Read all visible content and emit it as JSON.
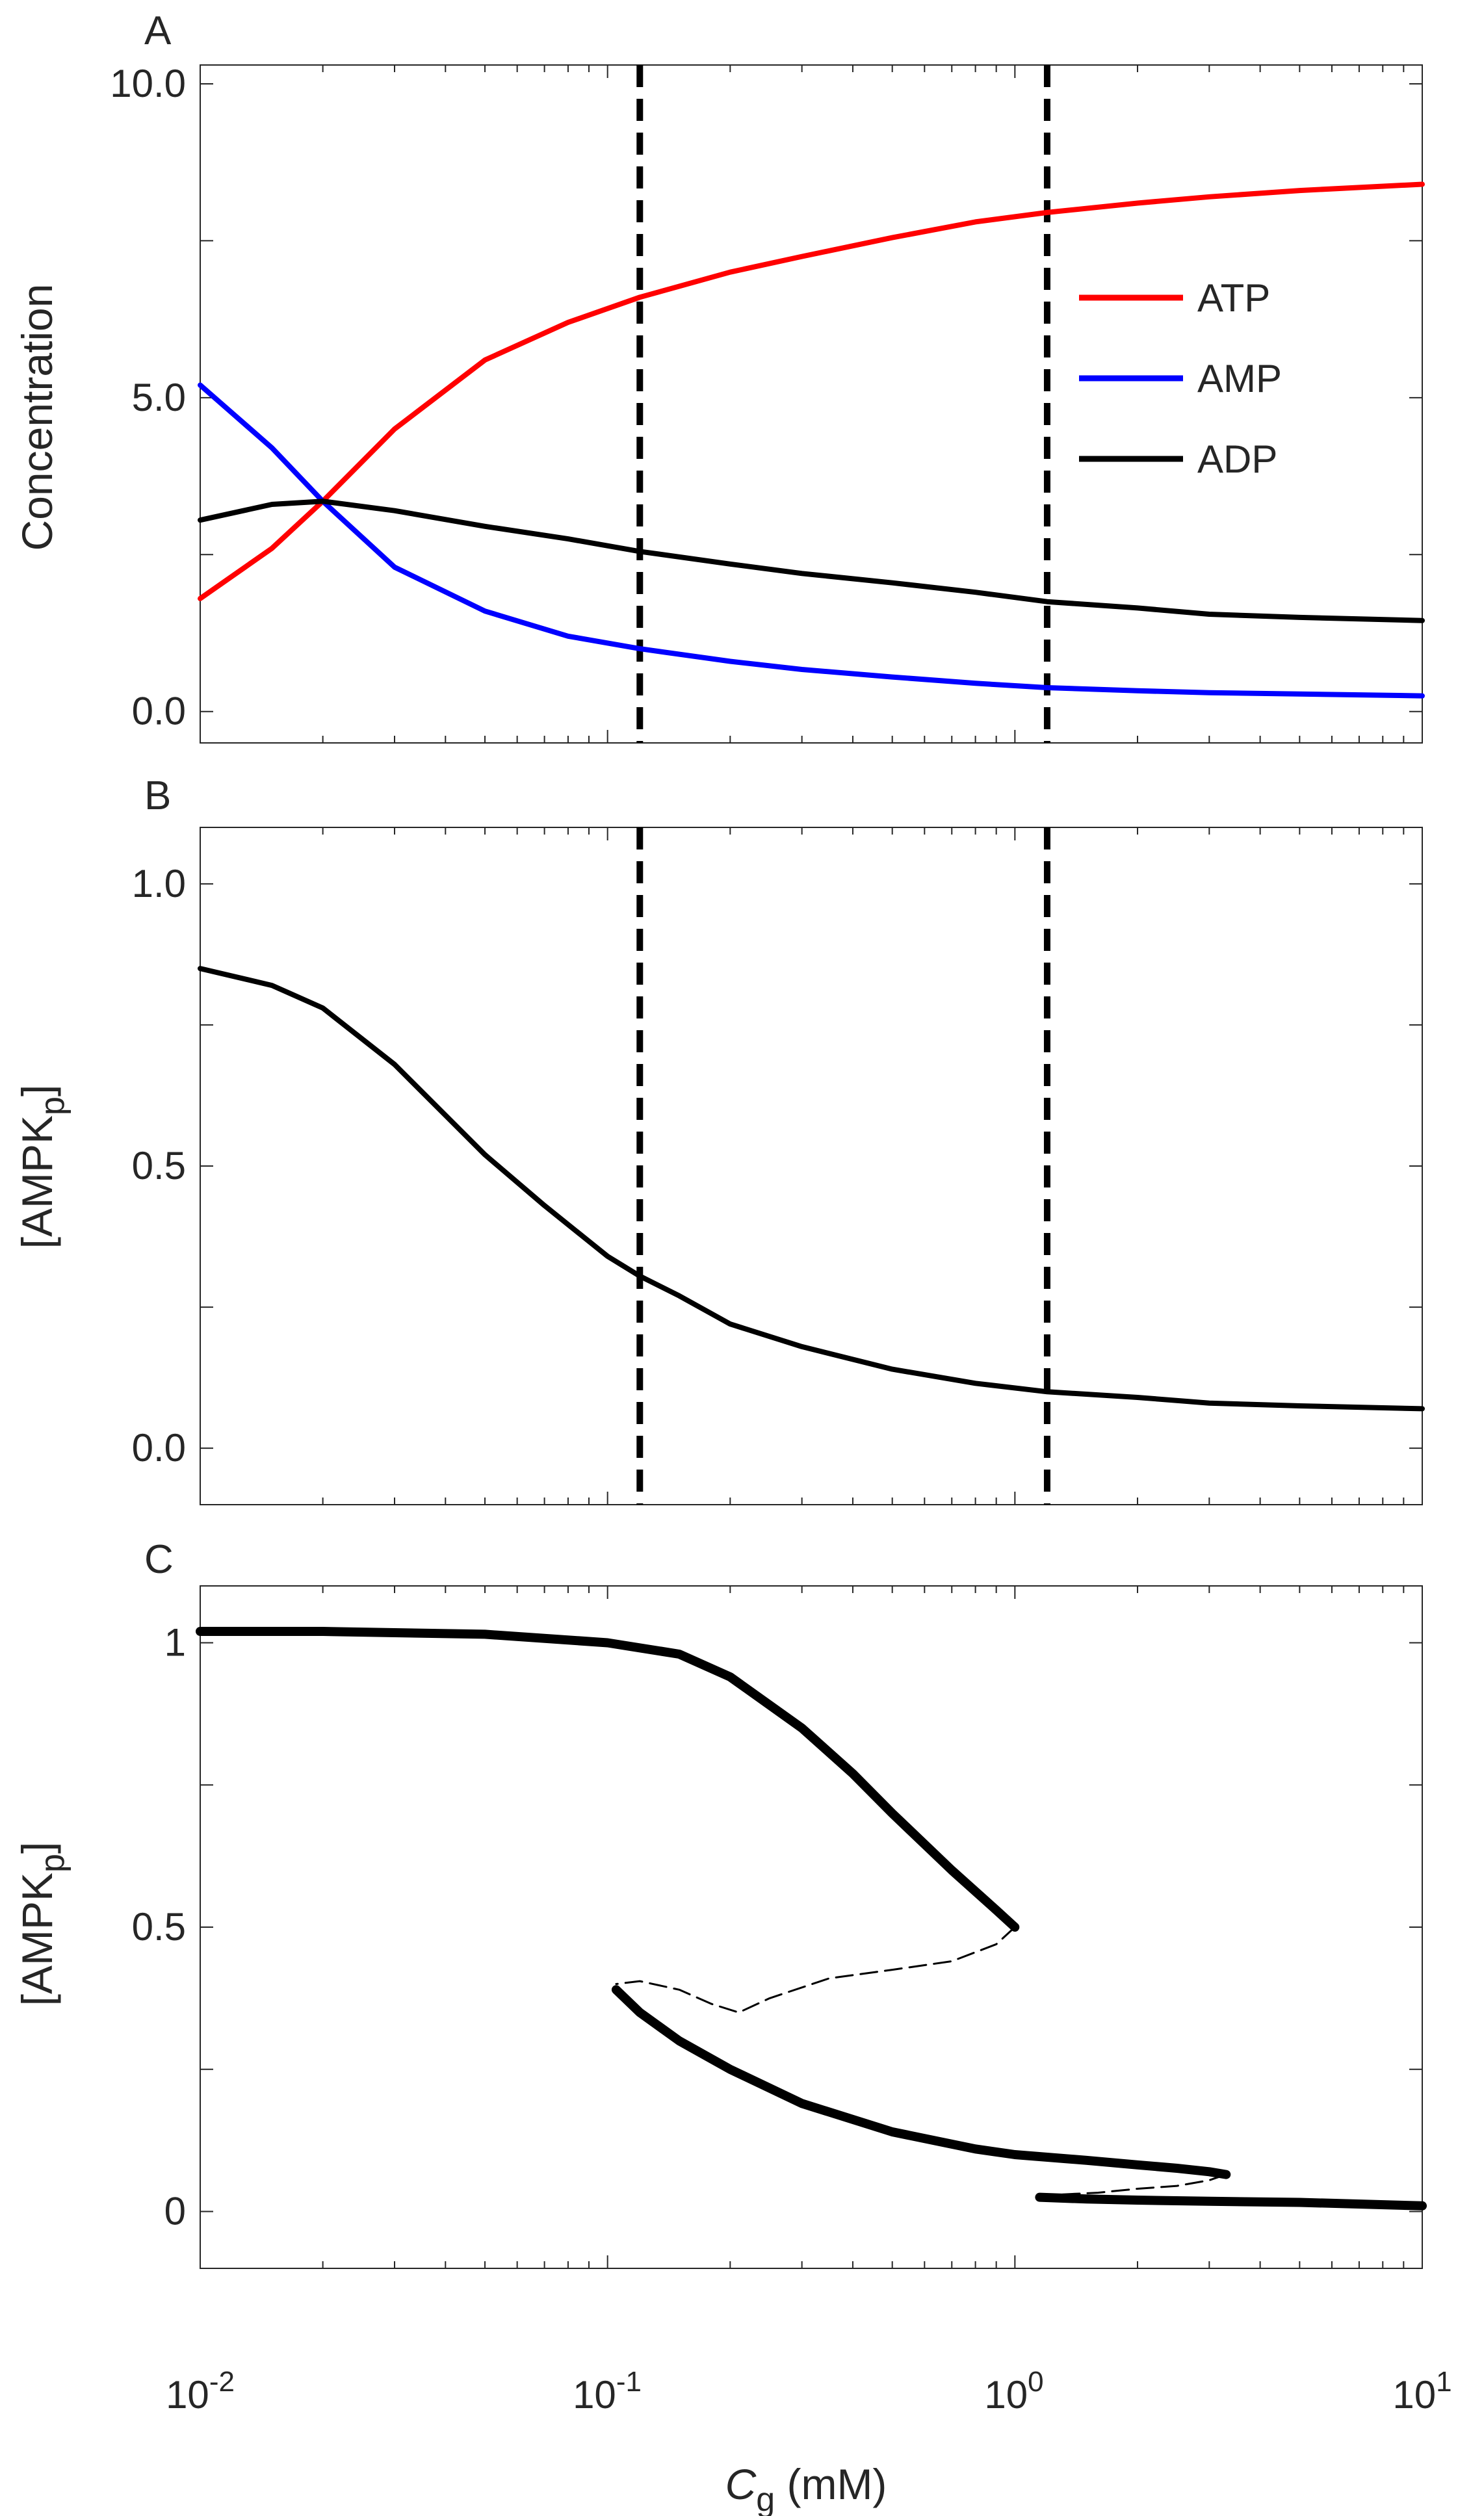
{
  "chart_data": [
    {
      "panel": "A",
      "type": "line",
      "title": "",
      "xlabel": "",
      "ylabel": "Concentration",
      "xscale": "log",
      "xlim": [
        0.01,
        10
      ],
      "ylim": [
        -0.5,
        10.3
      ],
      "yticks": [
        0,
        5,
        10
      ],
      "ytick_labels": [
        "0.0",
        "5.0",
        "10.0"
      ],
      "legend": {
        "position": "right",
        "entries": [
          "ATP",
          "AMP",
          "ADP"
        ]
      },
      "vlines": [
        0.12,
        1.2
      ],
      "series": [
        {
          "name": "ATP",
          "color": "#ff0000",
          "x": [
            0.01,
            0.015,
            0.02,
            0.03,
            0.05,
            0.08,
            0.12,
            0.2,
            0.3,
            0.5,
            0.8,
            1.2,
            2,
            3,
            5,
            10
          ],
          "y": [
            1.8,
            2.6,
            3.35,
            4.5,
            5.6,
            6.2,
            6.6,
            7.0,
            7.25,
            7.55,
            7.8,
            7.95,
            8.1,
            8.2,
            8.3,
            8.4
          ]
        },
        {
          "name": "AMP",
          "color": "#0000ff",
          "x": [
            0.01,
            0.015,
            0.02,
            0.03,
            0.05,
            0.08,
            0.12,
            0.2,
            0.3,
            0.5,
            0.8,
            1.2,
            2,
            3,
            5,
            10
          ],
          "y": [
            5.2,
            4.2,
            3.35,
            2.3,
            1.6,
            1.2,
            1.0,
            0.8,
            0.67,
            0.55,
            0.45,
            0.38,
            0.33,
            0.3,
            0.28,
            0.25
          ]
        },
        {
          "name": "ADP",
          "color": "#000000",
          "x": [
            0.01,
            0.015,
            0.02,
            0.03,
            0.05,
            0.08,
            0.12,
            0.2,
            0.3,
            0.5,
            0.8,
            1.2,
            2,
            3,
            5,
            10
          ],
          "y": [
            3.05,
            3.3,
            3.35,
            3.2,
            2.95,
            2.75,
            2.55,
            2.35,
            2.2,
            2.05,
            1.9,
            1.75,
            1.65,
            1.55,
            1.5,
            1.45
          ]
        }
      ]
    },
    {
      "panel": "B",
      "type": "line",
      "title": "",
      "xlabel": "",
      "ylabel": "[AMPK",
      "ylabel_sub": "p",
      "ylabel_end": "]",
      "xscale": "log",
      "xlim": [
        0.01,
        10
      ],
      "ylim": [
        -0.1,
        1.1
      ],
      "yticks": [
        0,
        0.5,
        1.0
      ],
      "ytick_labels": [
        "0.0",
        "0.5",
        "1.0"
      ],
      "vlines": [
        0.12,
        1.2
      ],
      "series": [
        {
          "name": "AMPKp",
          "color": "#000000",
          "x": [
            0.01,
            0.015,
            0.02,
            0.03,
            0.04,
            0.05,
            0.07,
            0.1,
            0.12,
            0.15,
            0.2,
            0.3,
            0.5,
            0.8,
            1.2,
            2,
            3,
            5,
            10
          ],
          "y": [
            0.85,
            0.82,
            0.78,
            0.68,
            0.59,
            0.52,
            0.43,
            0.34,
            0.305,
            0.27,
            0.22,
            0.18,
            0.14,
            0.115,
            0.1,
            0.09,
            0.08,
            0.075,
            0.07
          ]
        }
      ]
    },
    {
      "panel": "C",
      "type": "line",
      "title": "",
      "xlabel": "C",
      "xlabel_sub": "g",
      "xlabel_units": " (mM)",
      "ylabel": "[AMPK",
      "ylabel_sub": "p",
      "ylabel_end": "]",
      "xscale": "log",
      "xlim": [
        0.01,
        10
      ],
      "ylim": [
        -0.1,
        1.1
      ],
      "yticks": [
        0,
        0.5,
        1
      ],
      "ytick_labels": [
        "0",
        "0.5",
        "1"
      ],
      "xtick_base": "10",
      "xtick_exponents": [
        "-2",
        "-1",
        "0",
        "1"
      ],
      "series": [
        {
          "name": "stable-upper",
          "style": "solid",
          "x": [
            0.01,
            0.02,
            0.05,
            0.1,
            0.15,
            0.2,
            0.3,
            0.4,
            0.5,
            0.7,
            0.9,
            1.0
          ],
          "y": [
            1.02,
            1.02,
            1.015,
            1.0,
            0.98,
            0.94,
            0.85,
            0.77,
            0.7,
            0.6,
            0.53,
            0.5
          ]
        },
        {
          "name": "unstable-middle",
          "style": "dashed",
          "x": [
            1.0,
            0.9,
            0.7,
            0.5,
            0.35,
            0.25,
            0.21,
            0.18,
            0.15,
            0.12,
            0.105
          ],
          "y": [
            0.5,
            0.47,
            0.44,
            0.425,
            0.41,
            0.375,
            0.35,
            0.365,
            0.39,
            0.405,
            0.4
          ]
        },
        {
          "name": "stable-middle",
          "style": "solid",
          "x": [
            0.105,
            0.12,
            0.15,
            0.2,
            0.3,
            0.5,
            0.8,
            1.0,
            1.5,
            2.0,
            2.5,
            3.0,
            3.3
          ],
          "y": [
            0.39,
            0.35,
            0.3,
            0.25,
            0.19,
            0.14,
            0.11,
            0.1,
            0.09,
            0.082,
            0.076,
            0.07,
            0.065
          ]
        },
        {
          "name": "unstable-lower",
          "style": "dashed",
          "x": [
            3.3,
            3.0,
            2.5,
            2.0,
            1.6,
            1.3,
            1.15
          ],
          "y": [
            0.065,
            0.055,
            0.045,
            0.04,
            0.033,
            0.03,
            0.025
          ]
        },
        {
          "name": "stable-lower",
          "style": "solid",
          "x": [
            1.15,
            1.5,
            2.0,
            3.0,
            5.0,
            10.0
          ],
          "y": [
            0.025,
            0.022,
            0.02,
            0.018,
            0.016,
            0.01
          ]
        }
      ]
    }
  ]
}
